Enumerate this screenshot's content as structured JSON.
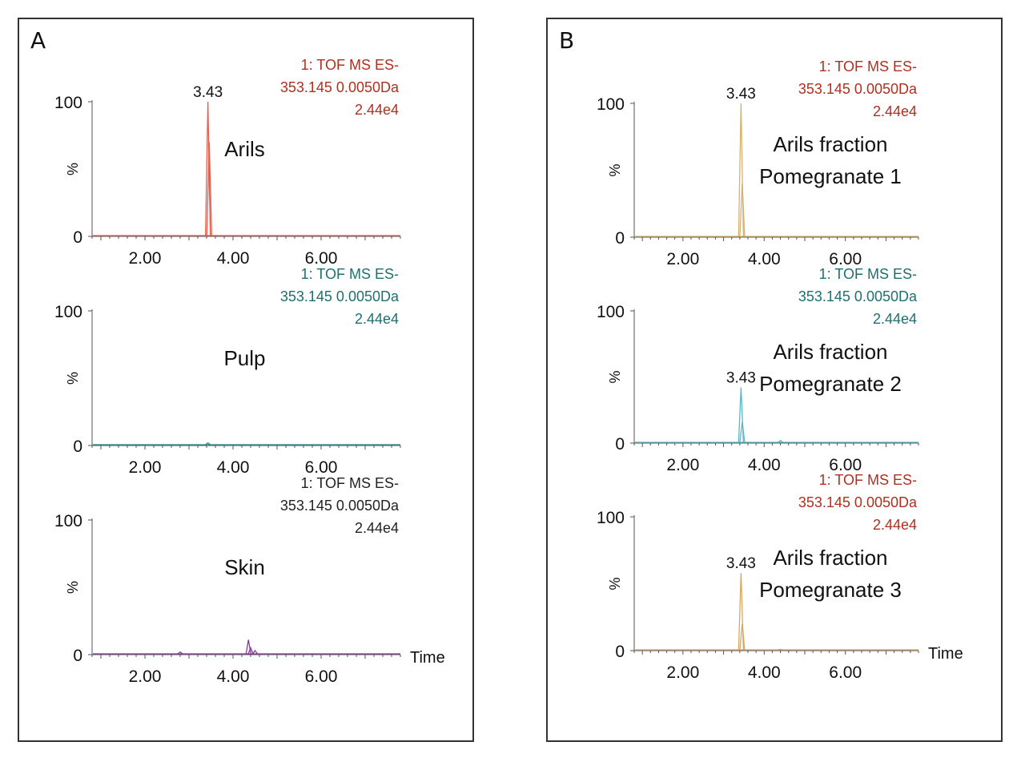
{
  "panels": [
    {
      "label": "A",
      "charts": [
        {
          "type": "line",
          "sample_label": [
            "Arils"
          ],
          "header": [
            "1: TOF MS ES-",
            "353.145 0.0050Da",
            "2.44e4"
          ],
          "header_color": "#b03020",
          "trace_color": "#e06050",
          "peak_label": "3.43",
          "x_range": [
            0.8,
            7.8
          ],
          "y_range": [
            0,
            100
          ],
          "x_ticks": [
            "2.00",
            "4.00",
            "6.00"
          ],
          "x_tick_values": [
            2.0,
            4.0,
            6.0
          ],
          "y_ticks": [
            "0",
            "100"
          ],
          "ylabel": "%",
          "xlabel": "",
          "peaks": [
            [
              3.43,
              100
            ],
            [
              3.46,
              70
            ]
          ]
        },
        {
          "type": "line",
          "sample_label": [
            "Pulp"
          ],
          "header": [
            "1: TOF MS ES-",
            "353.145 0.0050Da",
            "2.44e4"
          ],
          "header_color": "#1f6f70",
          "trace_color": "#2a8a8c",
          "peak_label": "",
          "x_range": [
            0.8,
            7.8
          ],
          "y_range": [
            0,
            100
          ],
          "x_ticks": [
            "2.00",
            "4.00",
            "6.00"
          ],
          "x_tick_values": [
            2.0,
            4.0,
            6.0
          ],
          "y_ticks": [
            "0",
            "100"
          ],
          "ylabel": "%",
          "xlabel": "",
          "peaks": [
            [
              3.43,
              2
            ]
          ]
        },
        {
          "type": "line",
          "sample_label": [
            "Skin"
          ],
          "header": [
            "1: TOF MS ES-",
            "353.145 0.0050Da",
            "2.44e4"
          ],
          "header_color": "#222222",
          "trace_color": "#8a3a9a",
          "peak_label": "",
          "x_range": [
            0.8,
            7.8
          ],
          "y_range": [
            0,
            100
          ],
          "x_ticks": [
            "2.00",
            "4.00",
            "6.00"
          ],
          "x_tick_values": [
            2.0,
            4.0,
            6.0
          ],
          "y_ticks": [
            "0",
            "100"
          ],
          "ylabel": "%",
          "xlabel": "Time",
          "peaks": [
            [
              2.8,
              2
            ],
            [
              4.35,
              11
            ],
            [
              4.4,
              5
            ],
            [
              4.5,
              3
            ]
          ]
        }
      ]
    },
    {
      "label": "B",
      "charts": [
        {
          "type": "line",
          "sample_label": [
            "Arils fraction",
            "Pomegranate 1"
          ],
          "header": [
            "1: TOF MS ES-",
            "353.145 0.0050Da",
            "2.44e4"
          ],
          "header_color": "#b03020",
          "trace_color": "#d8b070",
          "peak_label": "3.43",
          "x_range": [
            0.8,
            7.8
          ],
          "y_range": [
            0,
            100
          ],
          "x_ticks": [
            "2.00",
            "4.00",
            "6.00"
          ],
          "x_tick_values": [
            2.0,
            4.0,
            6.0
          ],
          "y_ticks": [
            "0",
            "100"
          ],
          "ylabel": "%",
          "xlabel": "",
          "peaks": [
            [
              3.43,
              100
            ],
            [
              3.46,
              40
            ]
          ]
        },
        {
          "type": "line",
          "sample_label": [
            "Arils fraction",
            "Pomegranate 2"
          ],
          "header": [
            "1: TOF MS ES-",
            "353.145 0.0050Da",
            "2.44e4"
          ],
          "header_color": "#1f6f70",
          "trace_color": "#5ab8c8",
          "peak_label": "3.43",
          "x_range": [
            0.8,
            7.8
          ],
          "y_range": [
            0,
            100
          ],
          "x_ticks": [
            "2.00",
            "4.00",
            "6.00"
          ],
          "x_tick_values": [
            2.0,
            4.0,
            6.0
          ],
          "y_ticks": [
            "0",
            "100"
          ],
          "ylabel": "%",
          "xlabel": "",
          "peaks": [
            [
              3.43,
              42
            ],
            [
              3.46,
              16
            ],
            [
              4.4,
              2
            ]
          ]
        },
        {
          "type": "line",
          "sample_label": [
            "Arils fraction",
            "Pomegranate 3"
          ],
          "header": [
            "1: TOF MS ES-",
            "353.145 0.0050Da",
            "2.44e4"
          ],
          "header_color": "#b03020",
          "trace_color": "#d8a860",
          "peak_label": "3.43",
          "x_range": [
            0.8,
            7.8
          ],
          "y_range": [
            0,
            100
          ],
          "x_ticks": [
            "2.00",
            "4.00",
            "6.00"
          ],
          "x_tick_values": [
            2.0,
            4.0,
            6.0
          ],
          "y_ticks": [
            "0",
            "100"
          ],
          "ylabel": "%",
          "xlabel": "Time",
          "peaks": [
            [
              3.43,
              58
            ],
            [
              3.46,
              20
            ],
            [
              4.4,
              1
            ]
          ]
        }
      ]
    }
  ],
  "chart_data": [
    {
      "type": "line",
      "panel": "A",
      "sample": "Arils",
      "header": "1: TOF MS ES- 353.145 0.0050Da 2.44e4",
      "xlabel": "Time",
      "ylabel": "%",
      "xlim": [
        0.8,
        7.8
      ],
      "ylim": [
        0,
        100
      ],
      "peaks": [
        {
          "x": 3.43,
          "y": 100,
          "label": "3.43"
        }
      ]
    },
    {
      "type": "line",
      "panel": "A",
      "sample": "Pulp",
      "header": "1: TOF MS ES- 353.145 0.0050Da 2.44e4",
      "xlabel": "Time",
      "ylabel": "%",
      "xlim": [
        0.8,
        7.8
      ],
      "ylim": [
        0,
        100
      ],
      "peaks": [
        {
          "x": 3.43,
          "y": 2
        }
      ]
    },
    {
      "type": "line",
      "panel": "A",
      "sample": "Skin",
      "header": "1: TOF MS ES- 353.145 0.0050Da 2.44e4",
      "xlabel": "Time",
      "ylabel": "%",
      "xlim": [
        0.8,
        7.8
      ],
      "ylim": [
        0,
        100
      ],
      "peaks": [
        {
          "x": 2.8,
          "y": 2
        },
        {
          "x": 4.35,
          "y": 11
        }
      ]
    },
    {
      "type": "line",
      "panel": "B",
      "sample": "Arils fraction Pomegranate 1",
      "header": "1: TOF MS ES- 353.145 0.0050Da 2.44e4",
      "xlabel": "Time",
      "ylabel": "%",
      "xlim": [
        0.8,
        7.8
      ],
      "ylim": [
        0,
        100
      ],
      "peaks": [
        {
          "x": 3.43,
          "y": 100,
          "label": "3.43"
        }
      ]
    },
    {
      "type": "line",
      "panel": "B",
      "sample": "Arils fraction Pomegranate 2",
      "header": "1: TOF MS ES- 353.145 0.0050Da 2.44e4",
      "xlabel": "Time",
      "ylabel": "%",
      "xlim": [
        0.8,
        7.8
      ],
      "ylim": [
        0,
        100
      ],
      "peaks": [
        {
          "x": 3.43,
          "y": 42,
          "label": "3.43"
        }
      ]
    },
    {
      "type": "line",
      "panel": "B",
      "sample": "Arils fraction Pomegranate 3",
      "header": "1: TOF MS ES- 353.145 0.0050Da 2.44e4",
      "xlabel": "Time",
      "ylabel": "%",
      "xlim": [
        0.8,
        7.8
      ],
      "ylim": [
        0,
        100
      ],
      "peaks": [
        {
          "x": 3.43,
          "y": 58,
          "label": "3.43"
        }
      ]
    }
  ]
}
